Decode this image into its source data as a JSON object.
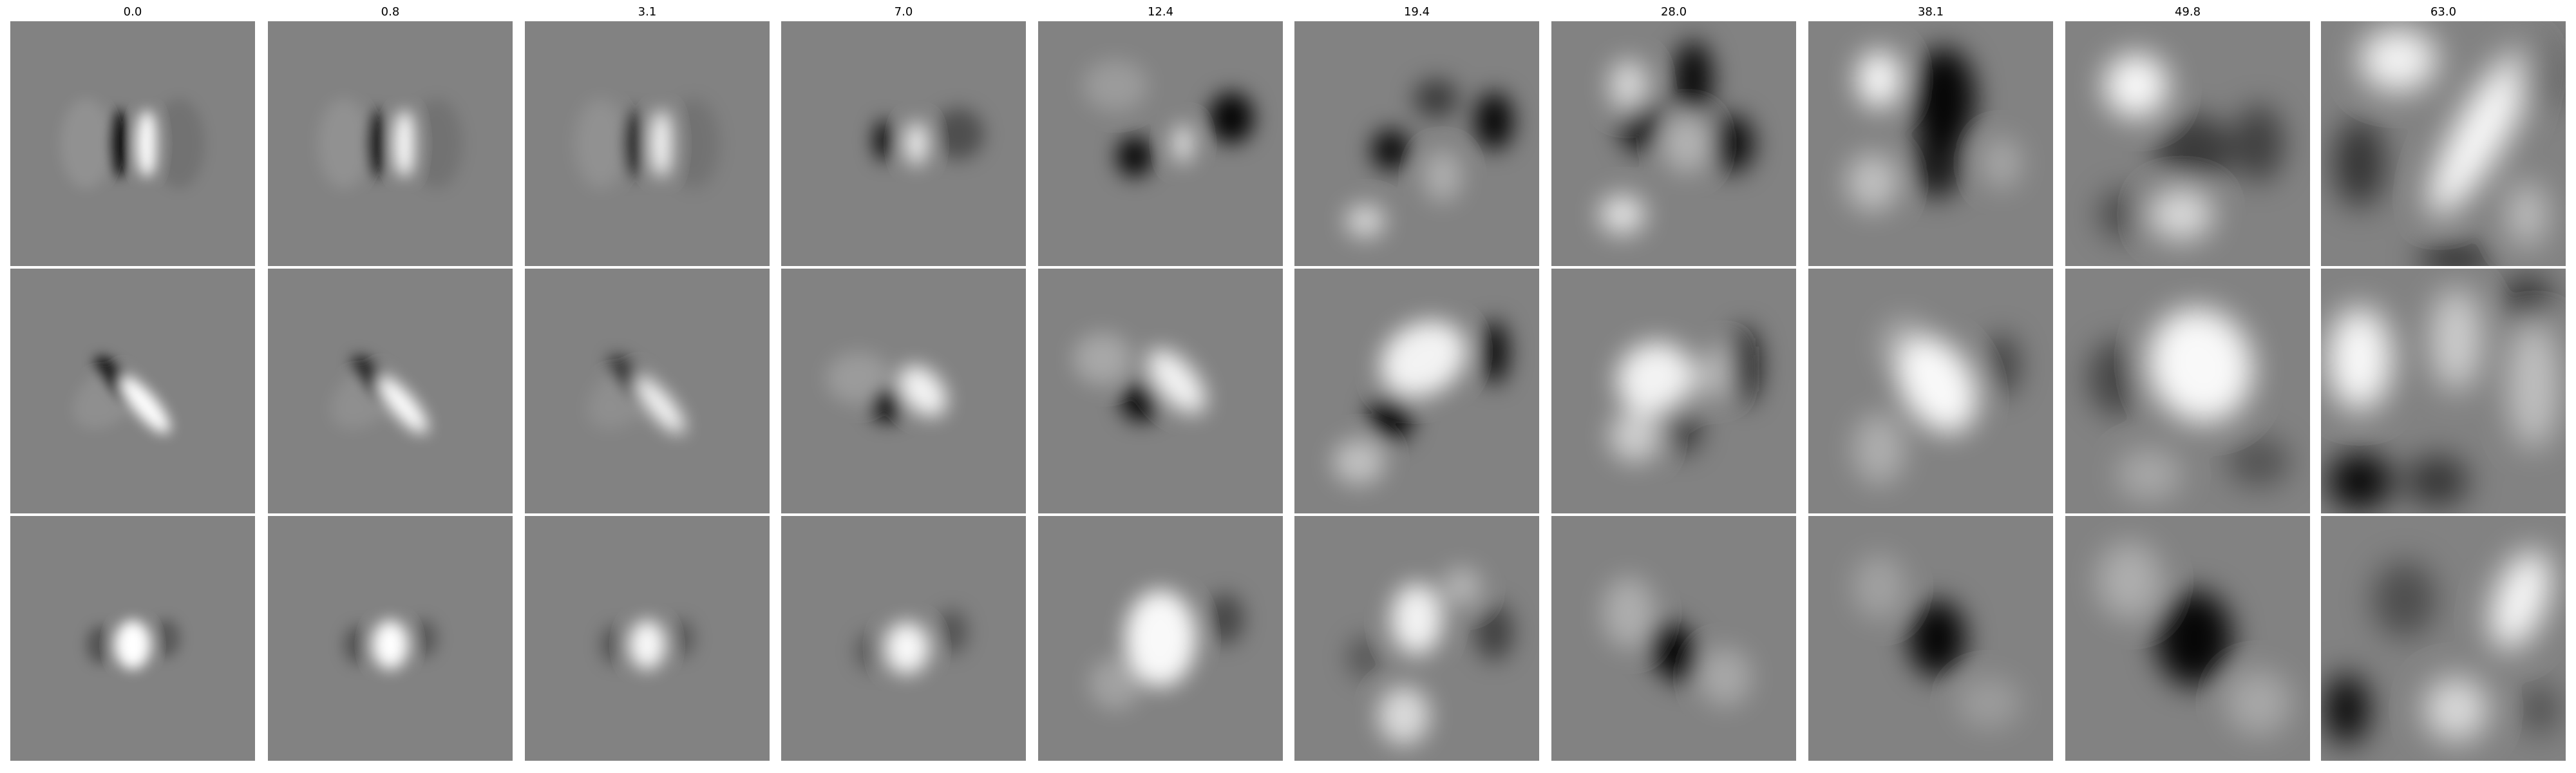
{
  "column_titles": [
    "0.0",
    "0.8",
    "3.1",
    "7.0",
    "12.4",
    "19.4",
    "28.0",
    "38.1",
    "49.8",
    "63.0"
  ],
  "rows": 3,
  "colors": {
    "background": "#ffffff",
    "tile_mid_gray": "#828282",
    "title_text": "#000000"
  }
}
